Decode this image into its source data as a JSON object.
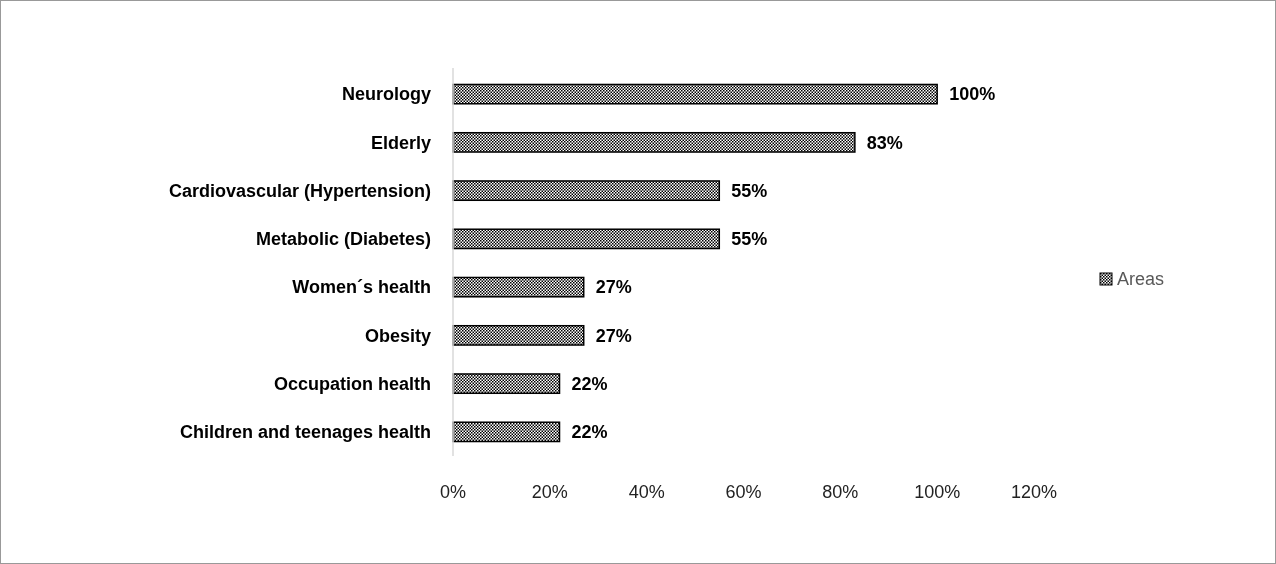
{
  "chart_data": {
    "type": "bar",
    "orientation": "horizontal",
    "categories": [
      "Neurology",
      "Elderly",
      "Cardiovascular (Hypertension)",
      "Metabolic (Diabetes)",
      "Women´s health",
      "Obesity",
      "Occupation health",
      "Children and teenages health"
    ],
    "series": [
      {
        "name": "Areas",
        "color": "#000000",
        "values": [
          100,
          83,
          55,
          55,
          27,
          27,
          22,
          22
        ],
        "value_labels": [
          "100%",
          "83%",
          "55%",
          "55%",
          "27%",
          "27%",
          "22%",
          "22%"
        ]
      }
    ],
    "xlim": [
      0,
      120
    ],
    "xticks": [
      {
        "value": 0,
        "label": "0%"
      },
      {
        "value": 20,
        "label": "20%"
      },
      {
        "value": 40,
        "label": "40%"
      },
      {
        "value": 60,
        "label": "60%"
      },
      {
        "value": 80,
        "label": "80%"
      },
      {
        "value": 100,
        "label": "100%"
      },
      {
        "value": 120,
        "label": "120%"
      }
    ],
    "grid": false,
    "legend": "right"
  }
}
